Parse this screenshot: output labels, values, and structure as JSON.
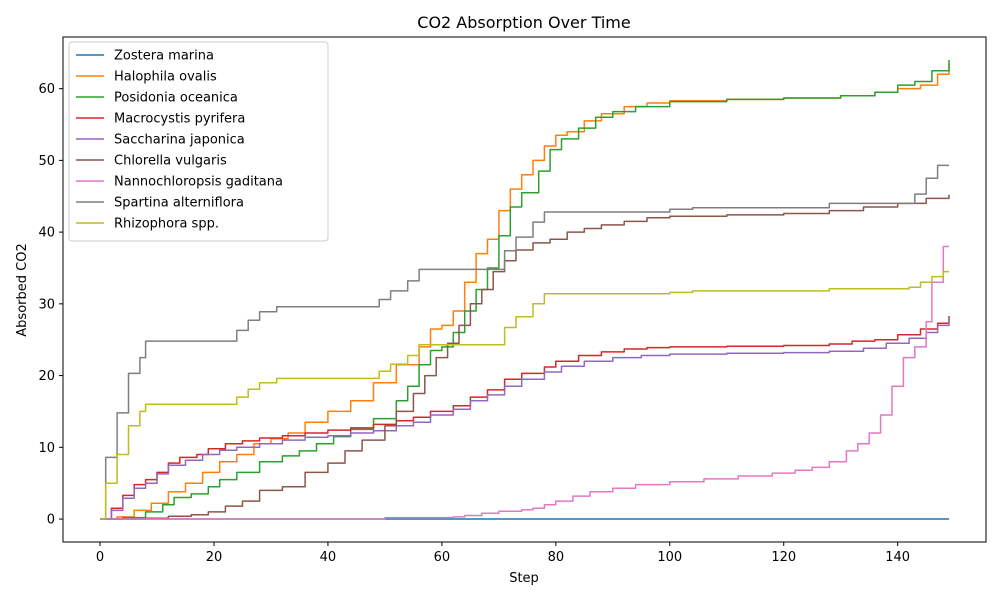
{
  "chart_data": {
    "type": "line",
    "title": "CO2 Absorption Over Time",
    "xlabel": "Step",
    "ylabel": "Absorbed CO2",
    "xlim": [
      -6.5,
      155.5
    ],
    "ylim": [
      -3.2,
      67.2
    ],
    "xticks": [
      0,
      20,
      40,
      60,
      80,
      100,
      120,
      140
    ],
    "yticks": [
      0,
      10,
      20,
      30,
      40,
      50,
      60
    ],
    "grid": false,
    "legend_position": "upper-left",
    "series": [
      {
        "name": "Zostera marina",
        "color": "#1f77b4",
        "points": [
          [
            0,
            0
          ],
          [
            149,
            0
          ]
        ]
      },
      {
        "name": "Halophila ovalis",
        "color": "#ff7f0e",
        "points": [
          [
            0,
            0
          ],
          [
            3,
            0.3
          ],
          [
            6,
            1.2
          ],
          [
            9,
            2.2
          ],
          [
            12,
            3.8
          ],
          [
            15,
            5
          ],
          [
            18,
            6.5
          ],
          [
            21,
            8
          ],
          [
            24,
            9
          ],
          [
            27,
            10.5
          ],
          [
            30,
            11.2
          ],
          [
            33,
            12
          ],
          [
            36,
            13.5
          ],
          [
            40,
            15
          ],
          [
            44,
            16.5
          ],
          [
            48,
            19
          ],
          [
            52,
            21.5
          ],
          [
            56,
            24
          ],
          [
            58,
            26.5
          ],
          [
            60,
            27
          ],
          [
            62,
            29
          ],
          [
            64,
            33
          ],
          [
            66,
            37
          ],
          [
            68,
            39
          ],
          [
            70,
            43
          ],
          [
            72,
            46
          ],
          [
            74,
            48
          ],
          [
            76,
            50
          ],
          [
            78,
            52
          ],
          [
            80,
            53.5
          ],
          [
            82,
            54
          ],
          [
            85,
            55.5
          ],
          [
            88,
            56.5
          ],
          [
            92,
            57.5
          ],
          [
            96,
            58
          ],
          [
            100,
            58.3
          ],
          [
            110,
            58.5
          ],
          [
            120,
            58.7
          ],
          [
            130,
            59
          ],
          [
            136,
            59.5
          ],
          [
            140,
            60
          ],
          [
            144,
            60.5
          ],
          [
            147,
            62
          ],
          [
            149,
            63.5
          ]
        ]
      },
      {
        "name": "Posidonia oceanica",
        "color": "#2ca02c",
        "points": [
          [
            0,
            0
          ],
          [
            4,
            0.2
          ],
          [
            8,
            1
          ],
          [
            11,
            2
          ],
          [
            13,
            3
          ],
          [
            16,
            3.5
          ],
          [
            19,
            4.5
          ],
          [
            21,
            5.5
          ],
          [
            24,
            6.5
          ],
          [
            28,
            8
          ],
          [
            32,
            8.8
          ],
          [
            35,
            9.5
          ],
          [
            38,
            10.5
          ],
          [
            41,
            11.5
          ],
          [
            44,
            12.5
          ],
          [
            48,
            14
          ],
          [
            52,
            16.5
          ],
          [
            54,
            18.5
          ],
          [
            56,
            21.5
          ],
          [
            58,
            23.5
          ],
          [
            60,
            24
          ],
          [
            62,
            26
          ],
          [
            64,
            29
          ],
          [
            66,
            32
          ],
          [
            68,
            35
          ],
          [
            70,
            39.5
          ],
          [
            72,
            43.5
          ],
          [
            74,
            45.5
          ],
          [
            77,
            48.5
          ],
          [
            79,
            51.5
          ],
          [
            81,
            53
          ],
          [
            84,
            54.5
          ],
          [
            87,
            56
          ],
          [
            90,
            56.8
          ],
          [
            94,
            57.5
          ],
          [
            100,
            58.2
          ],
          [
            110,
            58.5
          ],
          [
            120,
            58.7
          ],
          [
            130,
            59
          ],
          [
            136,
            59.5
          ],
          [
            140,
            60.5
          ],
          [
            143,
            61
          ],
          [
            146,
            62.5
          ],
          [
            149,
            64
          ]
        ]
      },
      {
        "name": "Macrocystis pyrifera",
        "color": "#d62728",
        "points": [
          [
            0,
            0
          ],
          [
            2,
            1.5
          ],
          [
            4,
            3.3
          ],
          [
            6,
            4.8
          ],
          [
            8,
            5.5
          ],
          [
            10,
            6.5
          ],
          [
            12,
            7.8
          ],
          [
            14,
            8.6
          ],
          [
            17,
            9
          ],
          [
            19,
            9.8
          ],
          [
            22,
            10.5
          ],
          [
            25,
            10.9
          ],
          [
            28,
            11.3
          ],
          [
            32,
            11.6
          ],
          [
            36,
            12
          ],
          [
            40,
            12.4
          ],
          [
            44,
            12.7
          ],
          [
            48,
            13.2
          ],
          [
            52,
            13.7
          ],
          [
            55,
            14.2
          ],
          [
            58,
            15
          ],
          [
            62,
            15.8
          ],
          [
            65,
            17
          ],
          [
            68,
            18
          ],
          [
            71,
            19.5
          ],
          [
            74,
            20.3
          ],
          [
            78,
            21.2
          ],
          [
            80,
            22
          ],
          [
            84,
            22.8
          ],
          [
            88,
            23.3
          ],
          [
            92,
            23.7
          ],
          [
            96,
            23.9
          ],
          [
            100,
            24
          ],
          [
            110,
            24.1
          ],
          [
            120,
            24.2
          ],
          [
            128,
            24.4
          ],
          [
            132,
            24.8
          ],
          [
            136,
            25
          ],
          [
            140,
            25.7
          ],
          [
            144,
            26.5
          ],
          [
            147,
            27.3
          ],
          [
            149,
            28.3
          ]
        ]
      },
      {
        "name": "Saccharina japonica",
        "color": "#9467bd",
        "points": [
          [
            0,
            0
          ],
          [
            2,
            1.2
          ],
          [
            4,
            2.9
          ],
          [
            6,
            4.3
          ],
          [
            8,
            5
          ],
          [
            10,
            6.3
          ],
          [
            12,
            7.5
          ],
          [
            15,
            8.2
          ],
          [
            18,
            9
          ],
          [
            21,
            9.6
          ],
          [
            24,
            10
          ],
          [
            28,
            10.5
          ],
          [
            32,
            11
          ],
          [
            36,
            11.4
          ],
          [
            40,
            11.6
          ],
          [
            44,
            12
          ],
          [
            48,
            12.3
          ],
          [
            52,
            13
          ],
          [
            55,
            13.5
          ],
          [
            58,
            14.5
          ],
          [
            62,
            15.3
          ],
          [
            65,
            16.5
          ],
          [
            68,
            17.3
          ],
          [
            71,
            18.5
          ],
          [
            74,
            19.5
          ],
          [
            78,
            20.5
          ],
          [
            81,
            21.3
          ],
          [
            85,
            22
          ],
          [
            90,
            22.5
          ],
          [
            95,
            22.8
          ],
          [
            100,
            23
          ],
          [
            110,
            23.1
          ],
          [
            120,
            23.2
          ],
          [
            128,
            23.4
          ],
          [
            134,
            23.8
          ],
          [
            138,
            24.5
          ],
          [
            142,
            25.2
          ],
          [
            145,
            26
          ],
          [
            147,
            27
          ],
          [
            149,
            28
          ]
        ]
      },
      {
        "name": "Chlorella vulgaris",
        "color": "#8c564b",
        "points": [
          [
            0,
            0
          ],
          [
            8,
            0.1
          ],
          [
            12,
            0.4
          ],
          [
            16,
            0.6
          ],
          [
            19,
            1
          ],
          [
            22,
            1.8
          ],
          [
            25,
            2.5
          ],
          [
            28,
            4
          ],
          [
            32,
            4.5
          ],
          [
            36,
            6.5
          ],
          [
            40,
            7.8
          ],
          [
            43,
            9.5
          ],
          [
            46,
            11
          ],
          [
            50,
            13
          ],
          [
            52,
            15
          ],
          [
            55,
            17.5
          ],
          [
            57,
            20
          ],
          [
            59,
            22.5
          ],
          [
            61,
            24.5
          ],
          [
            63,
            27
          ],
          [
            65,
            30
          ],
          [
            67,
            32
          ],
          [
            69,
            34.5
          ],
          [
            71,
            36
          ],
          [
            73,
            37.5
          ],
          [
            76,
            38.5
          ],
          [
            79,
            39
          ],
          [
            82,
            40
          ],
          [
            85,
            40.5
          ],
          [
            88,
            41
          ],
          [
            92,
            41.5
          ],
          [
            96,
            42
          ],
          [
            100,
            42.2
          ],
          [
            110,
            42.4
          ],
          [
            120,
            42.6
          ],
          [
            128,
            43
          ],
          [
            134,
            43.5
          ],
          [
            140,
            44
          ],
          [
            145,
            44.7
          ],
          [
            149,
            45.2
          ]
        ]
      },
      {
        "name": "Nannochloropsis gaditana",
        "color": "#e377c2",
        "points": [
          [
            0,
            0
          ],
          [
            40,
            0
          ],
          [
            50,
            0.2
          ],
          [
            62,
            0.3
          ],
          [
            64,
            0.5
          ],
          [
            67,
            0.8
          ],
          [
            70,
            1.1
          ],
          [
            74,
            1.3
          ],
          [
            76,
            1.5
          ],
          [
            78,
            2
          ],
          [
            80,
            2.5
          ],
          [
            83,
            3.2
          ],
          [
            86,
            3.8
          ],
          [
            90,
            4.3
          ],
          [
            94,
            4.8
          ],
          [
            100,
            5.2
          ],
          [
            106,
            5.6
          ],
          [
            112,
            6
          ],
          [
            118,
            6.4
          ],
          [
            122,
            6.8
          ],
          [
            125,
            7.2
          ],
          [
            128,
            8
          ],
          [
            131,
            9.5
          ],
          [
            133,
            10.5
          ],
          [
            135,
            12
          ],
          [
            137,
            14.5
          ],
          [
            139,
            18.5
          ],
          [
            141,
            22.5
          ],
          [
            143,
            24
          ],
          [
            145,
            27.5
          ],
          [
            146,
            33
          ],
          [
            148,
            38
          ],
          [
            149,
            38
          ]
        ]
      },
      {
        "name": "Spartina alterniflora",
        "color": "#7f7f7f",
        "points": [
          [
            0,
            0
          ],
          [
            1,
            8.6
          ],
          [
            3,
            14.8
          ],
          [
            5,
            20.3
          ],
          [
            7,
            22.5
          ],
          [
            8,
            24.8
          ],
          [
            20,
            24.8
          ],
          [
            23,
            24.8
          ],
          [
            24,
            26.3
          ],
          [
            26,
            27.7
          ],
          [
            28,
            28.9
          ],
          [
            31,
            29.6
          ],
          [
            40,
            29.6
          ],
          [
            48,
            29.6
          ],
          [
            49,
            30.6
          ],
          [
            51,
            31.8
          ],
          [
            54,
            33.2
          ],
          [
            56,
            34.8
          ],
          [
            70,
            34.8
          ],
          [
            71,
            37.4
          ],
          [
            73,
            39.3
          ],
          [
            76,
            41.4
          ],
          [
            78,
            42.8
          ],
          [
            90,
            42.8
          ],
          [
            100,
            43.2
          ],
          [
            104,
            43.4
          ],
          [
            120,
            43.4
          ],
          [
            128,
            44
          ],
          [
            140,
            44
          ],
          [
            143,
            45.3
          ],
          [
            145,
            47.5
          ],
          [
            147,
            49.3
          ],
          [
            149,
            49.3
          ]
        ]
      },
      {
        "name": "Rhizophora spp.",
        "color": "#bcbd22",
        "points": [
          [
            0,
            0
          ],
          [
            1,
            5
          ],
          [
            3,
            9
          ],
          [
            5,
            13
          ],
          [
            7,
            15
          ],
          [
            8,
            16
          ],
          [
            20,
            16
          ],
          [
            23,
            16
          ],
          [
            24,
            17
          ],
          [
            26,
            18.1
          ],
          [
            28,
            19
          ],
          [
            31,
            19.6
          ],
          [
            40,
            19.6
          ],
          [
            48,
            19.6
          ],
          [
            49,
            20.6
          ],
          [
            51,
            21.6
          ],
          [
            54,
            22.8
          ],
          [
            56,
            24.3
          ],
          [
            70,
            24.3
          ],
          [
            71,
            26.7
          ],
          [
            73,
            28.2
          ],
          [
            76,
            30
          ],
          [
            78,
            31.4
          ],
          [
            90,
            31.4
          ],
          [
            98,
            31.4
          ],
          [
            100,
            31.6
          ],
          [
            104,
            31.8
          ],
          [
            120,
            31.8
          ],
          [
            128,
            32.1
          ],
          [
            140,
            32.1
          ],
          [
            142,
            32.3
          ],
          [
            144,
            33
          ],
          [
            146,
            33.8
          ],
          [
            148,
            34.5
          ],
          [
            149,
            34.5
          ]
        ]
      }
    ]
  }
}
